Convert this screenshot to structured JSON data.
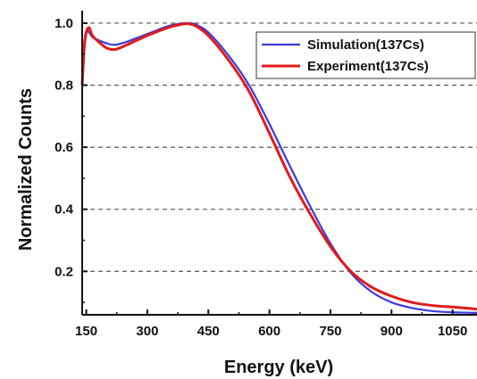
{
  "chart_data": {
    "type": "line",
    "xlabel": "Energy (keV)",
    "ylabel": "Normalized Counts",
    "xlim": [
      140,
      1110
    ],
    "ylim": [
      0.06,
      1.04
    ],
    "xticks": [
      150,
      300,
      450,
      600,
      750,
      900,
      1050
    ],
    "xtick_labels": [
      "150",
      "300",
      "450",
      "600",
      "750",
      "900",
      "1050"
    ],
    "yticks": [
      0.2,
      0.4,
      0.6,
      0.8,
      1.0
    ],
    "ytick_labels": [
      "0.2",
      "0.4",
      "0.6",
      "0.8",
      "1.0"
    ],
    "grid": "horizontal dashed",
    "legend_position": "top-right",
    "series": [
      {
        "name": "Simulation(137Cs)",
        "color": "#3b3bdc",
        "x": [
          140,
          145,
          150,
          157,
          165,
          180,
          200,
          220,
          250,
          300,
          350,
          380,
          400,
          420,
          450,
          500,
          550,
          600,
          650,
          700,
          750,
          800,
          850,
          900,
          950,
          1000,
          1050,
          1080,
          1110
        ],
        "y": [
          0.8,
          0.93,
          0.975,
          0.97,
          0.955,
          0.945,
          0.935,
          0.93,
          0.94,
          0.965,
          0.99,
          0.998,
          1.0,
          0.995,
          0.97,
          0.895,
          0.8,
          0.675,
          0.54,
          0.41,
          0.29,
          0.195,
          0.135,
          0.1,
          0.082,
          0.072,
          0.068,
          0.067,
          0.066
        ]
      },
      {
        "name": "Experiment(137Cs)",
        "color": "#e11a1a",
        "x": [
          140,
          145,
          150,
          157,
          165,
          180,
          200,
          220,
          250,
          300,
          350,
          380,
          400,
          420,
          450,
          500,
          550,
          600,
          650,
          700,
          750,
          800,
          850,
          900,
          950,
          1000,
          1050,
          1080,
          1110
        ],
        "y": [
          0.8,
          0.92,
          0.97,
          0.985,
          0.96,
          0.94,
          0.92,
          0.915,
          0.93,
          0.96,
          0.985,
          0.995,
          0.998,
          0.99,
          0.96,
          0.88,
          0.78,
          0.645,
          0.505,
          0.385,
          0.28,
          0.2,
          0.15,
          0.12,
          0.1,
          0.09,
          0.085,
          0.082,
          0.078
        ]
      }
    ]
  }
}
